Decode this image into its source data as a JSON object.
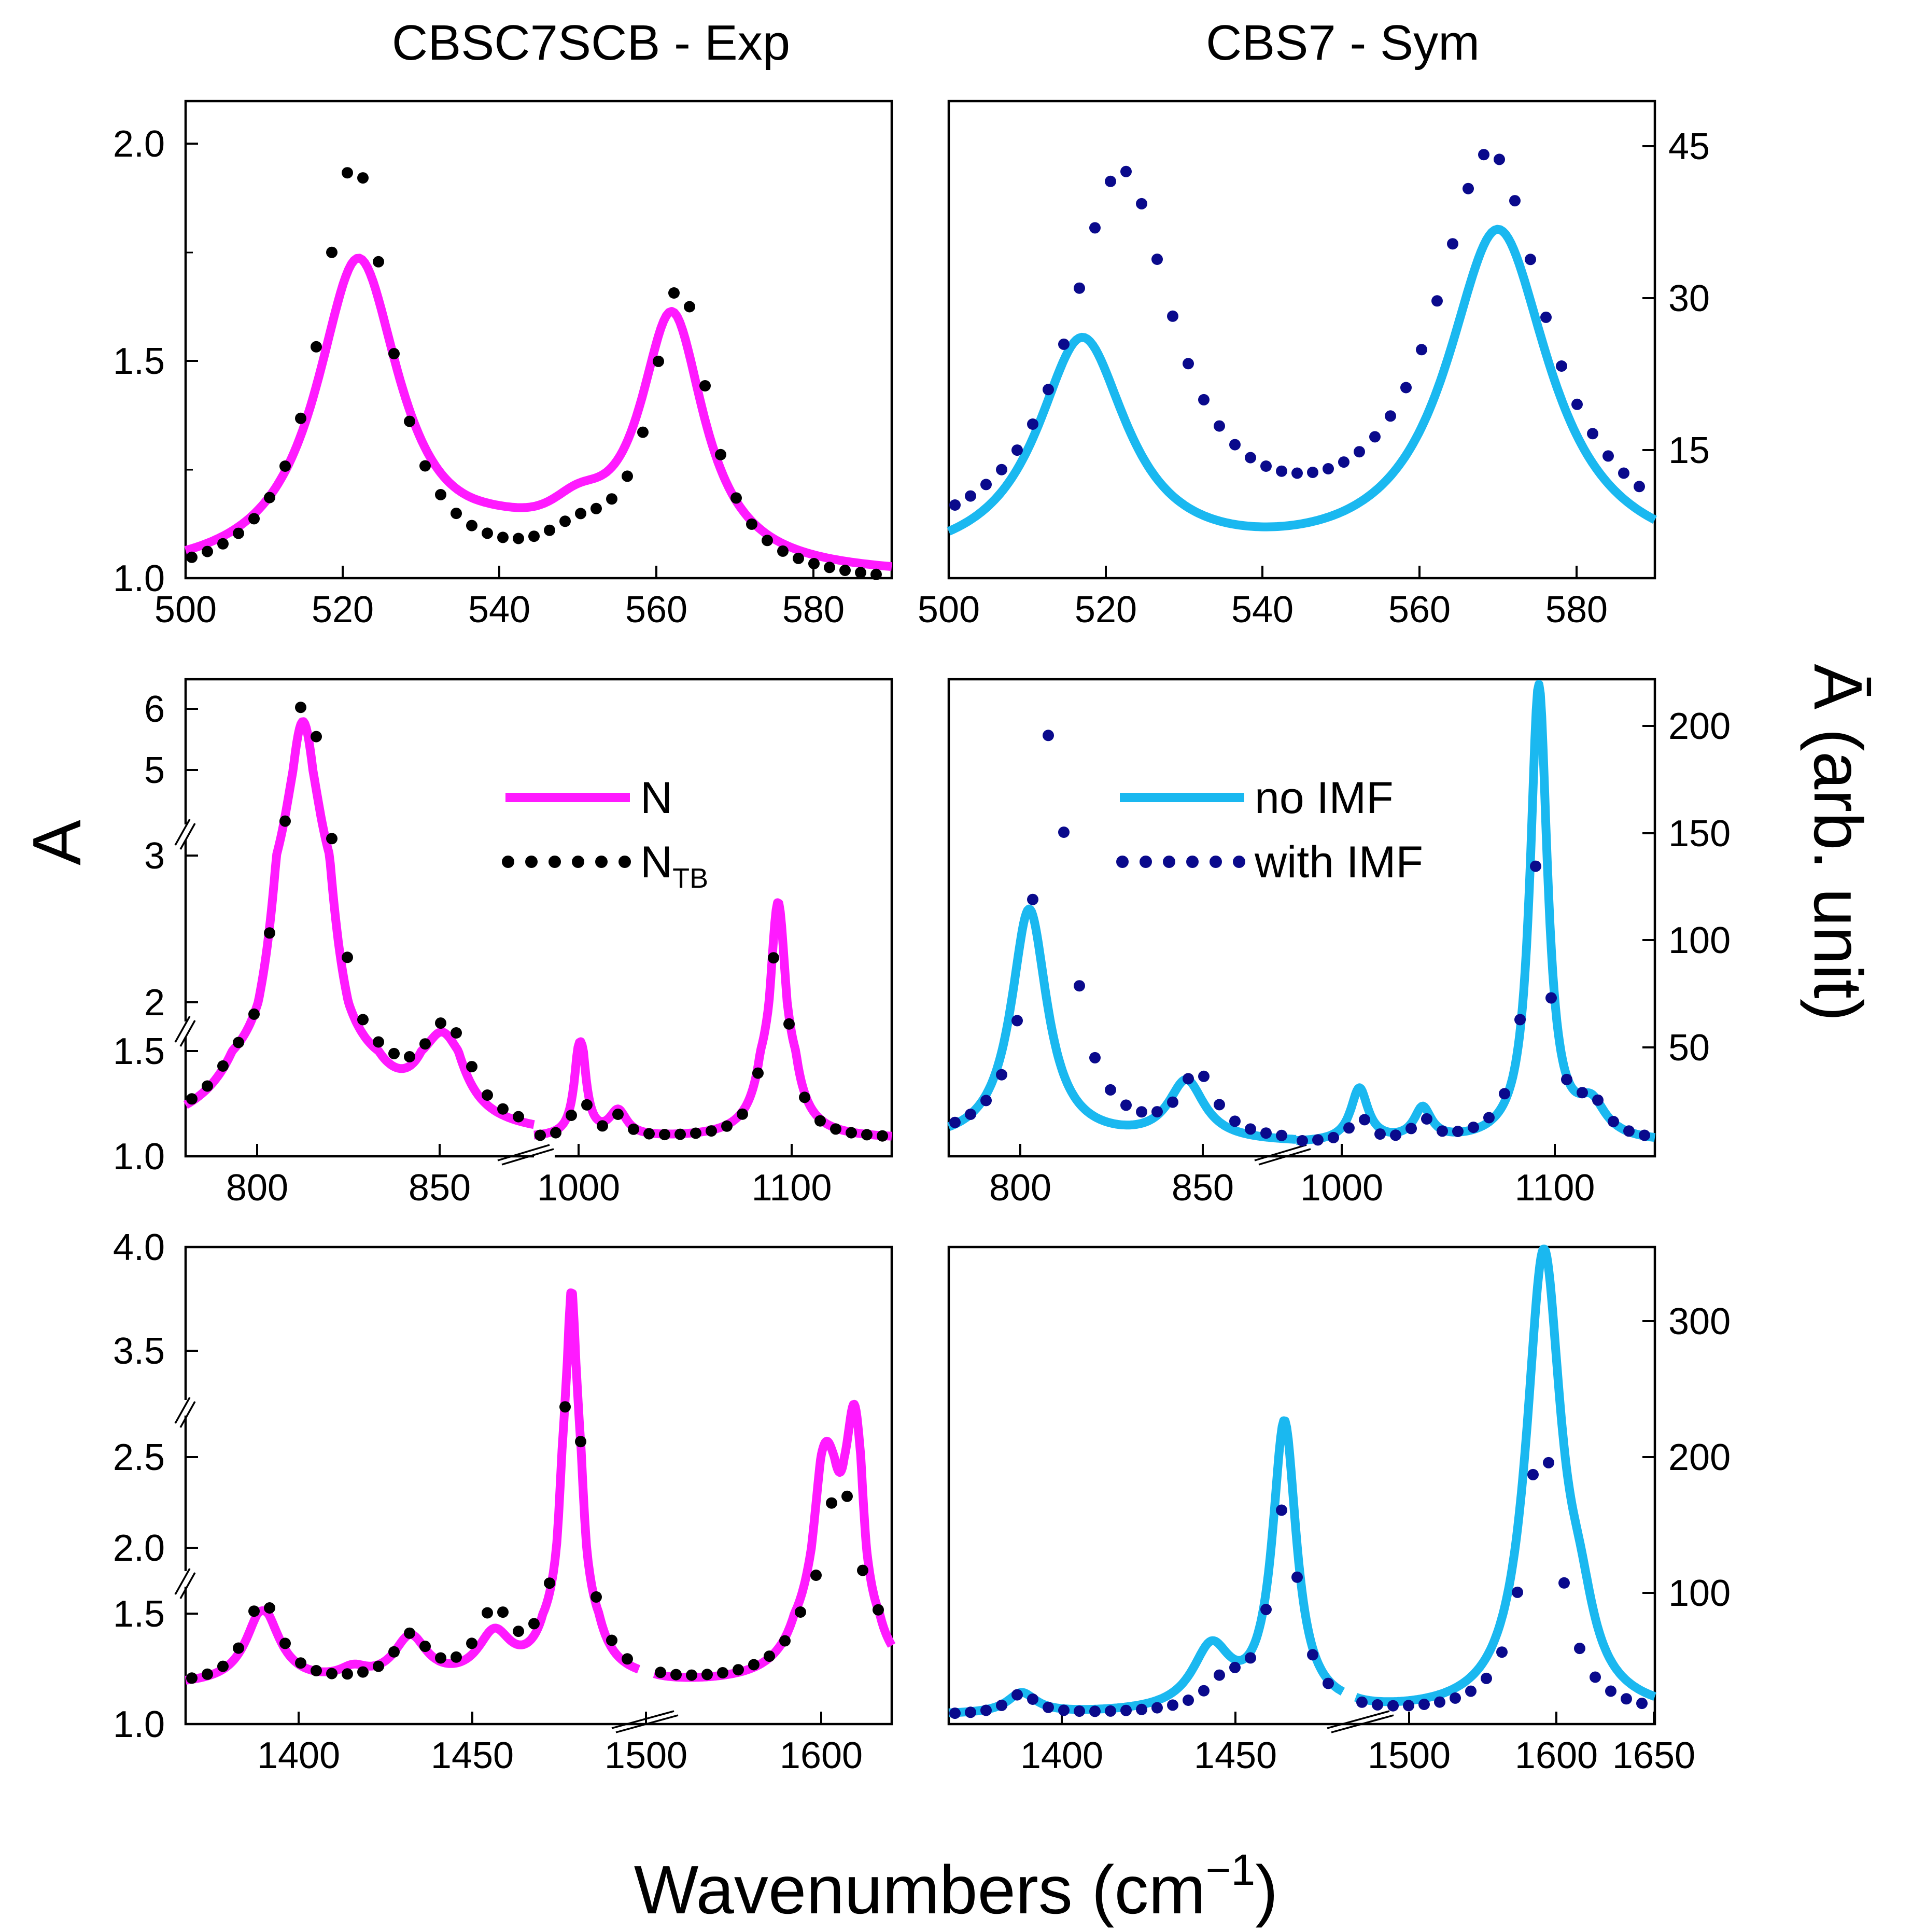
{
  "figure": {
    "title_left": "CBSC7SCB - Exp",
    "title_right": "CBS7 - Sym",
    "xlabel_main": "Wavenumbers (cm",
    "xlabel_sup": "−1",
    "xlabel_close": ")",
    "ylabel_left": "A",
    "ylabel_right": "Ā (arb. unit)"
  },
  "legend_left": {
    "solid": "N",
    "dotted_main": "N",
    "dotted_sub": "TB"
  },
  "legend_right": {
    "solid": "no IMF",
    "dotted": "with IMF"
  },
  "colors": {
    "exp_solid": "#ff1aff",
    "exp_dots": "#000000",
    "sym_solid": "#1ab8f0",
    "sym_dots": "#0a0a8c"
  },
  "chart_data": [
    {
      "id": "exp-top",
      "type": "line",
      "xlim": [
        500,
        590
      ],
      "ylim": [
        1.0,
        2.1
      ],
      "xticks": [
        "500",
        "520",
        "540",
        "560",
        "580"
      ],
      "yticks": [
        "1.0",
        "1.5",
        "2.0"
      ],
      "series": [
        {
          "name": "N",
          "style": "solid",
          "peaks": [
            [
              522,
              0.72,
              6.5
            ],
            [
              562,
              0.58,
              5
            ],
            [
              550,
              0.08,
              5
            ],
            [
              540,
              0.04,
              8
            ]
          ],
          "base": 1.0
        },
        {
          "name": "NTB",
          "style": "dotted",
          "peaks": [
            [
              521.5,
              0.97,
              5.5
            ],
            [
              563,
              0.67,
              4.5
            ],
            [
              550,
              0.06,
              5
            ]
          ],
          "base": 0.98
        }
      ]
    },
    {
      "id": "sym-top",
      "type": "line",
      "xlim": [
        500,
        590
      ],
      "ylim": [
        3,
        50
      ],
      "yaxis": "right",
      "xticks": [
        "500",
        "520",
        "540",
        "560",
        "580"
      ],
      "yticks": [
        "15",
        "30",
        "45"
      ],
      "series": [
        {
          "name": "no IMF",
          "style": "solid",
          "peaks": [
            [
              517,
              22,
              7
            ],
            [
              570,
              33,
              8
            ]
          ],
          "base": 4
        },
        {
          "name": "with IMF",
          "style": "dotted",
          "peaks": [
            [
              522,
              37,
              8
            ],
            [
              569,
              39,
              8.5
            ]
          ],
          "base": 5
        }
      ]
    },
    {
      "id": "exp-mid",
      "type": "line",
      "breaks": [
        "x",
        "y"
      ],
      "xlim_segments": [
        [
          780,
          875
        ],
        [
          980,
          1150
        ]
      ],
      "ylim": [
        1.0,
        6.5
      ],
      "xticks": [
        "800",
        "850",
        "1000",
        "1100"
      ],
      "yticks": [
        "1.0",
        "1.5",
        "2",
        "3",
        "5",
        "6"
      ],
      "series": [
        {
          "name": "N",
          "style": "solid",
          "peaks": [
            [
              812,
              4.7,
              6
            ],
            [
              850,
              0.5,
              6
            ],
            [
              1002,
              0.5,
              3
            ],
            [
              1020,
              0.12,
              5
            ],
            [
              1096,
              1.6,
              5
            ]
          ],
          "base": 1.08
        },
        {
          "name": "NTB",
          "style": "dotted",
          "peaks": [
            [
              813,
              5.3,
              6
            ],
            [
              851,
              0.6,
              6
            ],
            [
              1002,
              0.3,
              3
            ],
            [
              1020,
              0.1,
              5
            ],
            [
              1096,
              1.45,
              5
            ]
          ],
          "base": 1.08
        }
      ]
    },
    {
      "id": "sym-mid",
      "type": "line",
      "breaks": [
        "x"
      ],
      "xlim_segments": [
        [
          780,
          875
        ],
        [
          980,
          1150
        ]
      ],
      "ylim": [
        0,
        225
      ],
      "yaxis": "right",
      "xticks": [
        "800",
        "850",
        "1000",
        "1100"
      ],
      "yticks": [
        "50",
        "100",
        "150",
        "200"
      ],
      "series": [
        {
          "name": "no IMF",
          "style": "solid",
          "peaks": [
            [
              802,
              110,
              6
            ],
            [
              845,
              28,
              6
            ],
            [
              1010,
              25,
              5
            ],
            [
              1040,
              15,
              5
            ],
            [
              1095,
              215,
              5
            ],
            [
              1120,
              15,
              8
            ]
          ],
          "base": 6
        },
        {
          "name": "with IMF",
          "style": "dotted",
          "peaks": [
            [
              808,
              195,
              6
            ],
            [
              848,
              30,
              6
            ],
            [
              1010,
              12,
              5
            ],
            [
              1040,
              10,
              5
            ],
            [
              1094,
              130,
              7
            ],
            [
              1120,
              15,
              8
            ]
          ],
          "base": 6
        }
      ]
    },
    {
      "id": "exp-bot",
      "type": "line",
      "breaks": [
        "x",
        "y"
      ],
      "xlim_segments": [
        [
          1370,
          1505
        ],
        [
          1510,
          1625
        ]
      ],
      "ylim": [
        1.0,
        4.0
      ],
      "xticks": [
        "1400",
        "1450",
        "1500",
        "1600"
      ],
      "yticks": [
        "1.0",
        "1.5",
        "2.0",
        "2.5",
        "3.5",
        "4.0"
      ],
      "series": [
        {
          "name": "N",
          "style": "solid",
          "peaks": [
            [
              1393,
              0.34,
              6
            ],
            [
              1420,
              0.05,
              5
            ],
            [
              1437,
              0.2,
              6
            ],
            [
              1462,
              0.2,
              6
            ],
            [
              1485,
              2.6,
              3
            ],
            [
              1593,
              1.3,
              8
            ],
            [
              1607,
              1.5,
              5
            ]
          ],
          "base": 1.17
        },
        {
          "name": "NTB",
          "style": "dotted",
          "peaks": [
            [
              1393,
              0.4,
              6
            ],
            [
              1437,
              0.2,
              6
            ],
            [
              1462,
              0.3,
              6
            ],
            [
              1485,
              2.3,
              3.5
            ],
            [
              1600,
              1.2,
              12
            ]
          ],
          "base": 1.17
        }
      ]
    },
    {
      "id": "sym-bot",
      "type": "line",
      "breaks": [
        "x"
      ],
      "xlim_segments": [
        [
          1370,
          1505
        ],
        [
          1510,
          1650
        ]
      ],
      "ylim": [
        0,
        350
      ],
      "yaxis": "right",
      "xticks": [
        "1400",
        "1450",
        "1500",
        "1600",
        "1650"
      ],
      "yticks": [
        "100",
        "200",
        "300"
      ],
      "series": [
        {
          "name": "no IMF",
          "style": "solid",
          "peaks": [
            [
              1395,
              15,
              6
            ],
            [
              1460,
              45,
              8
            ],
            [
              1485,
              210,
              5
            ],
            [
              1598,
              335,
              10
            ],
            [
              1615,
              40,
              8
            ]
          ],
          "base": 6
        },
        {
          "name": "with IMF",
          "style": "dotted",
          "peaks": [
            [
              1395,
              15,
              6
            ],
            [
              1465,
              20,
              8
            ],
            [
              1485,
              150,
              6
            ],
            [
              1597,
              205,
              10
            ]
          ],
          "base": 6
        }
      ]
    }
  ]
}
